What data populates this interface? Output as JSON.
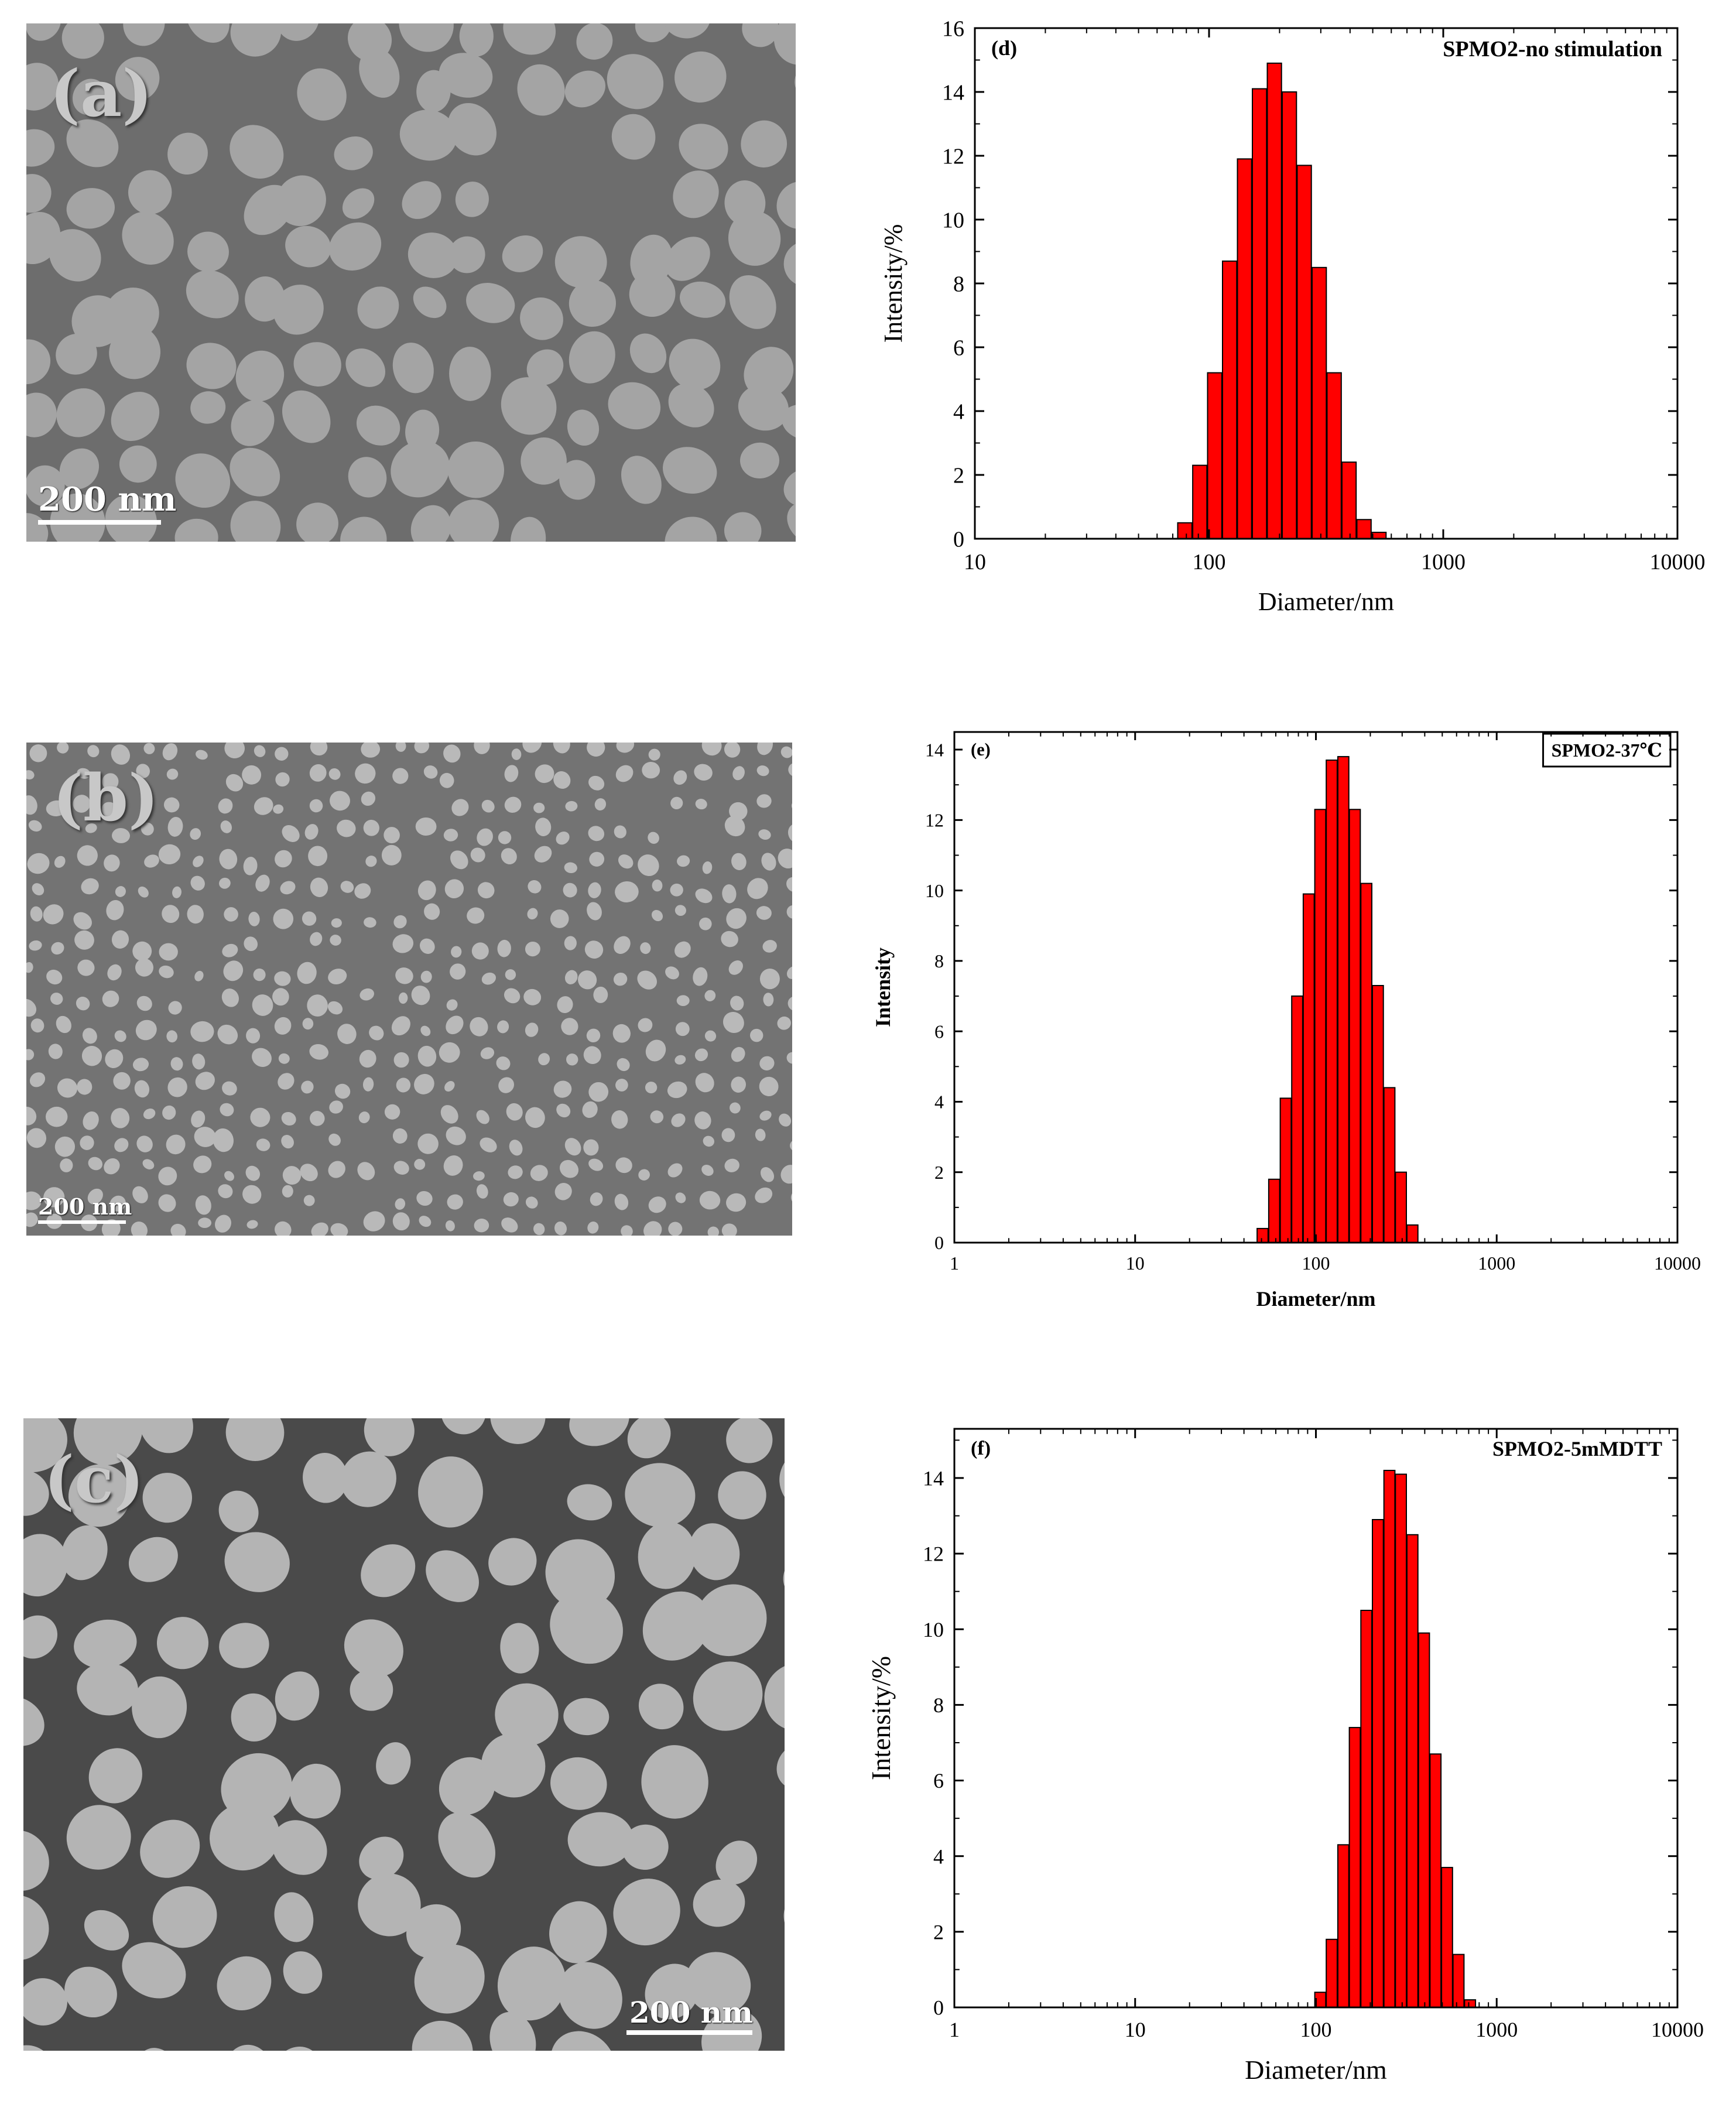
{
  "tem_panels": [
    {
      "label": "(a)",
      "scale": "200 nm"
    },
    {
      "label": "(b)",
      "scale": "200 nm"
    },
    {
      "label": "(c)",
      "scale": "200 nm"
    }
  ],
  "chart_data": [
    {
      "type": "bar",
      "panel_label": "(d)",
      "legend_text": "SPMO2-no stimulation",
      "xlabel": "Diameter/nm",
      "ylabel": "Intensity/%",
      "xscale": "log",
      "xlim": [
        10,
        10000
      ],
      "ylim": [
        0,
        16
      ],
      "xticks": [
        "10",
        "100",
        "1000",
        "10000"
      ],
      "yticks": [
        "0",
        "2",
        "4",
        "6",
        "8",
        "10",
        "12",
        "14",
        "16"
      ],
      "x": [
        78.8,
        91.3,
        105.7,
        122.4,
        141.8,
        164.2,
        190.1,
        220.2,
        255.0,
        295.3,
        342.0,
        396.1,
        458.7,
        531.2
      ],
      "values": [
        0.5,
        2.3,
        5.2,
        8.7,
        11.9,
        14.1,
        14.9,
        14.0,
        11.7,
        8.5,
        5.2,
        2.4,
        0.6,
        0.2
      ],
      "bar_color": "#ff0000"
    },
    {
      "type": "bar",
      "panel_label": "(e)",
      "legend_text": "SPMO2-37℃",
      "xlabel": "Diameter/nm",
      "ylabel": "Intensity",
      "xscale": "log",
      "xlim": [
        1,
        10000
      ],
      "ylim": [
        0,
        14.5
      ],
      "xticks": [
        "1",
        "10",
        "100",
        "1000",
        "10000"
      ],
      "yticks": [
        "0",
        "2",
        "4",
        "6",
        "8",
        "10",
        "12",
        "14"
      ],
      "x": [
        50.7,
        58.8,
        68.1,
        78.8,
        91.3,
        105.7,
        122.4,
        141.8,
        164.2,
        190.1,
        220.2,
        255.0,
        295.3,
        342.0
      ],
      "values": [
        0.4,
        1.8,
        4.1,
        7.0,
        9.9,
        12.3,
        13.7,
        13.8,
        12.3,
        10.2,
        7.3,
        4.4,
        2.0,
        0.5
      ],
      "bar_color": "#ff0000"
    },
    {
      "type": "bar",
      "panel_label": "(f)",
      "legend_text": "SPMO2-5mMDTT",
      "xlabel": "Diameter/nm",
      "ylabel": "Intensity/%",
      "xscale": "log",
      "xlim": [
        1,
        10000
      ],
      "ylim": [
        0,
        15.3
      ],
      "xticks": [
        "1",
        "10",
        "100",
        "1000",
        "10000"
      ],
      "yticks": [
        "0",
        "2",
        "4",
        "6",
        "8",
        "10",
        "12",
        "14"
      ],
      "x": [
        105.7,
        122.4,
        141.8,
        164.2,
        190.1,
        220.2,
        255.0,
        295.3,
        342.0,
        396.1,
        458.7,
        531.2,
        615.1,
        712.4
      ],
      "values": [
        0.4,
        1.8,
        4.3,
        7.4,
        10.5,
        12.9,
        14.2,
        14.1,
        12.5,
        9.9,
        6.7,
        3.7,
        1.4,
        0.2
      ],
      "bar_color": "#ff0000"
    }
  ]
}
